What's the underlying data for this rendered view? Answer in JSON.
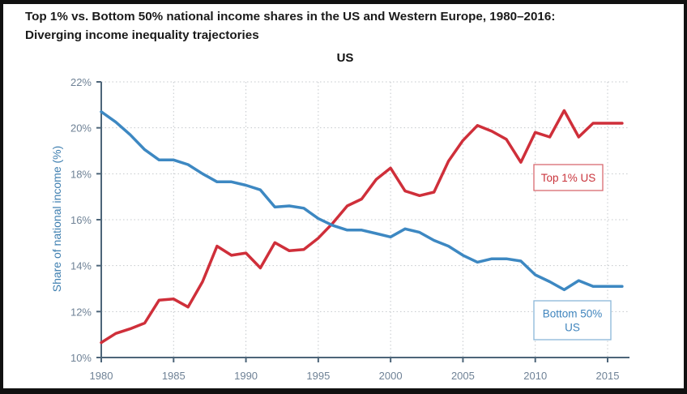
{
  "title_line1": "Top 1% vs. Bottom 50% national income shares in the US and Western Europe, 1980–2016:",
  "title_line2": "Diverging income inequality trajectories",
  "colors": {
    "top1": "#cf2f3a",
    "bottom50": "#3d88c2",
    "axis": "#4d6579",
    "grid": "#c4c8cc"
  },
  "chart_data": {
    "type": "line",
    "title": "Top 1% vs. Bottom 50% national income shares in the US and Western Europe, 1980–2016: Diverging income inequality trajectories",
    "subtitle": "US",
    "xlabel": "",
    "ylabel": "Share of national income (%)",
    "xlim": [
      1980,
      2016.8
    ],
    "ylim": [
      10,
      22
    ],
    "grid": true,
    "x_ticks": [
      1980,
      1985,
      1990,
      1995,
      2000,
      2005,
      2010,
      2015
    ],
    "x_tick_labels": [
      "1980",
      "1985",
      "1990",
      "1995",
      "2000",
      "2005",
      "2010",
      "2015"
    ],
    "y_ticks": [
      10,
      12,
      14,
      16,
      18,
      20,
      22
    ],
    "y_tick_labels": [
      "10%",
      "12%",
      "14%",
      "16%",
      "18%",
      "20%",
      "22%"
    ],
    "x": [
      1980,
      1981,
      1982,
      1983,
      1984,
      1985,
      1986,
      1987,
      1988,
      1989,
      1990,
      1991,
      1992,
      1993,
      1994,
      1995,
      1996,
      1997,
      1998,
      1999,
      2000,
      2001,
      2002,
      2003,
      2004,
      2005,
      2006,
      2007,
      2008,
      2009,
      2010,
      2011,
      2012,
      2013,
      2014,
      2015,
      2016
    ],
    "series": [
      {
        "name": "Top 1% US",
        "label_lines": [
          "Top 1% US"
        ],
        "color": "#cf2f3a",
        "values": [
          10.65,
          11.05,
          11.25,
          11.5,
          12.5,
          12.55,
          12.2,
          13.3,
          14.85,
          14.45,
          14.55,
          13.9,
          15.0,
          14.65,
          14.7,
          15.2,
          15.85,
          16.6,
          16.9,
          17.75,
          18.25,
          17.25,
          17.05,
          17.2,
          18.55,
          19.45,
          20.1,
          19.85,
          19.5,
          18.5,
          19.8,
          19.6,
          20.75,
          19.6,
          20.2,
          20.2,
          20.2
        ]
      },
      {
        "name": "Bottom 50% US",
        "label_lines": [
          "Bottom 50%",
          "US"
        ],
        "color": "#3d88c2",
        "values": [
          20.7,
          20.25,
          19.7,
          19.05,
          18.6,
          18.6,
          18.4,
          18.0,
          17.65,
          17.65,
          17.5,
          17.3,
          16.55,
          16.6,
          16.5,
          16.05,
          15.75,
          15.55,
          15.55,
          15.4,
          15.25,
          15.6,
          15.45,
          15.1,
          14.85,
          14.45,
          14.15,
          14.3,
          14.3,
          14.2,
          13.6,
          13.3,
          12.95,
          13.35,
          13.1,
          13.1,
          13.1
        ]
      }
    ]
  }
}
